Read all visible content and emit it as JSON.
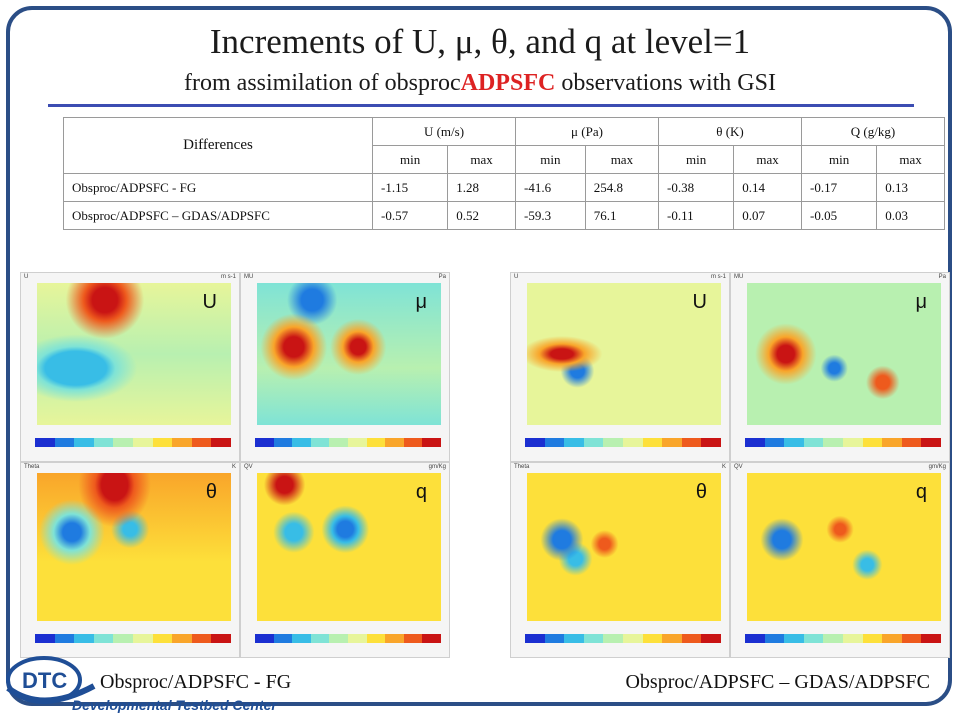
{
  "title": "Increments of U, μ, θ, and q at level=1",
  "subtitle": {
    "prefix": "from assimilation of obsproc",
    "highlight": "ADPSFC",
    "suffix": "observations with GSI"
  },
  "table": {
    "corner": "Differences",
    "groups": [
      "U (m/s)",
      "μ (Pa)",
      "θ (K)",
      "Q (g/kg)"
    ],
    "subheaders": [
      "min",
      "max",
      "min",
      "max",
      "min",
      "max",
      "min",
      "max"
    ],
    "rows": [
      {
        "label": "Obsproc/ADPSFC - FG",
        "values": [
          "-1.15",
          "1.28",
          "-41.6",
          "254.8",
          "-0.38",
          "0.14",
          "-0.17",
          "0.13"
        ]
      },
      {
        "label": "Obsproc/ADPSFC – GDAS/ADPSFC",
        "values": [
          "-0.57",
          "0.52",
          "-59.3",
          "76.1",
          "-0.11",
          "0.07",
          "-0.05",
          "0.03"
        ]
      }
    ]
  },
  "panels": [
    {
      "tag": "U",
      "corner_left": "U",
      "corner_right": "m s-1"
    },
    {
      "tag": "μ",
      "corner_left": "MU",
      "corner_right": "Pa"
    },
    {
      "tag": "U",
      "corner_left": "U",
      "corner_right": "m s-1"
    },
    {
      "tag": "μ",
      "corner_left": "MU",
      "corner_right": "Pa"
    },
    {
      "tag": "θ",
      "corner_left": "Theta",
      "corner_right": "K"
    },
    {
      "tag": "q",
      "corner_left": "QV",
      "corner_right": "gm/Kg"
    },
    {
      "tag": "θ",
      "corner_left": "Theta",
      "corner_right": "K"
    },
    {
      "tag": "q",
      "corner_left": "QV",
      "corner_right": "gm/Kg"
    }
  ],
  "footer": {
    "left": "Obsproc/ADPSFC - FG",
    "right": "Obsproc/ADPSFC – GDAS/ADPSFC"
  },
  "logo": {
    "short": "DTC",
    "full": "Developmental Testbed Center"
  },
  "colors": {
    "frame": "#2b4e86",
    "accent": "#dd2222",
    "rule": "#3c4db2",
    "logo": "#1f4e96"
  },
  "colorbar": [
    "#1b2fd1",
    "#1f7be0",
    "#38bde6",
    "#7fe3d6",
    "#b8f0b0",
    "#e7f59a",
    "#fde03a",
    "#f9a52a",
    "#ee5a1d",
    "#c91414"
  ]
}
